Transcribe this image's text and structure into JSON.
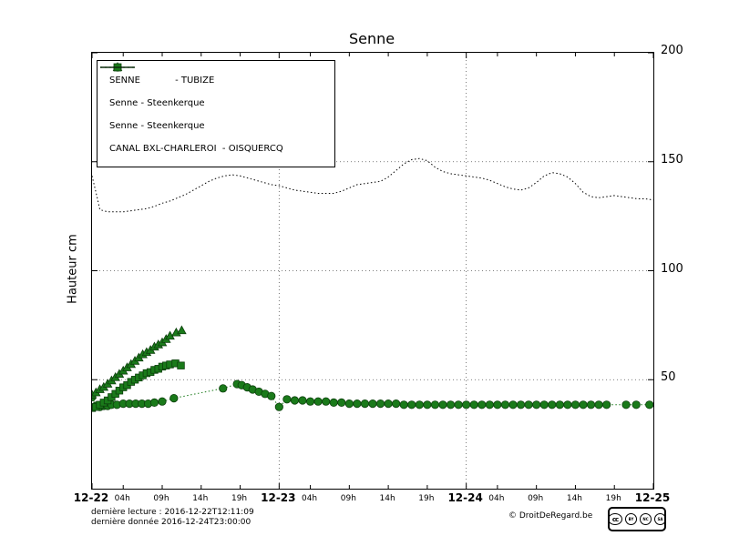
{
  "chart_data": {
    "type": "line",
    "title": "Senne",
    "ylabel": "Hauteur cm",
    "ylim": [
      0,
      200
    ],
    "xlim_hours": [
      0,
      72
    ],
    "y_ticks": [
      50,
      100,
      150,
      200
    ],
    "grid": true,
    "legend_position": "upper-left",
    "x_day_ticks": [
      {
        "hour": 0,
        "label": "12-22"
      },
      {
        "hour": 24,
        "label": "12-23"
      },
      {
        "hour": 48,
        "label": "12-24"
      },
      {
        "hour": 72,
        "label": "12-25"
      }
    ],
    "x_hour_ticks": [
      {
        "hour": 4,
        "label": "04h"
      },
      {
        "hour": 9,
        "label": "09h"
      },
      {
        "hour": 14,
        "label": "14h"
      },
      {
        "hour": 19,
        "label": "19h"
      },
      {
        "hour": 28,
        "label": "04h"
      },
      {
        "hour": 33,
        "label": "09h"
      },
      {
        "hour": 38,
        "label": "14h"
      },
      {
        "hour": 43,
        "label": "19h"
      },
      {
        "hour": 52,
        "label": "04h"
      },
      {
        "hour": 57,
        "label": "09h"
      },
      {
        "hour": 62,
        "label": "14h"
      },
      {
        "hour": 67,
        "label": "19h"
      }
    ],
    "series": [
      {
        "name": "SENNE - TUBIZE",
        "marker": "circle",
        "line": "dotted",
        "color": "#1a7a1a",
        "edge": "#0c3f0c",
        "points": [
          [
            0,
            42
          ],
          [
            0.5,
            38
          ],
          [
            1,
            37.5
          ],
          [
            1.5,
            38
          ],
          [
            2,
            38
          ],
          [
            2.5,
            38.5
          ],
          [
            3.2,
            38.5
          ],
          [
            4,
            39
          ],
          [
            4.8,
            39
          ],
          [
            5.6,
            39
          ],
          [
            6.4,
            39
          ],
          [
            7.2,
            39
          ],
          [
            8,
            39.5
          ],
          [
            9,
            40
          ],
          [
            10.5,
            41.5
          ],
          [
            16.8,
            46
          ],
          [
            18.6,
            48
          ],
          [
            19.2,
            47.5
          ],
          [
            19.9,
            46.5
          ],
          [
            20.6,
            45.5
          ],
          [
            21.4,
            44.5
          ],
          [
            22.2,
            43.5
          ],
          [
            23,
            42.5
          ],
          [
            24,
            37.5
          ],
          [
            25,
            41
          ],
          [
            26,
            40.5
          ],
          [
            27,
            40.5
          ],
          [
            28,
            40
          ],
          [
            29,
            40
          ],
          [
            30,
            40
          ],
          [
            31,
            39.5
          ],
          [
            32,
            39.5
          ],
          [
            33,
            39
          ],
          [
            34,
            39
          ],
          [
            35,
            39
          ],
          [
            36,
            39
          ],
          [
            37,
            39
          ],
          [
            38,
            39
          ],
          [
            39,
            39
          ],
          [
            40,
            38.5
          ],
          [
            41,
            38.5
          ],
          [
            42,
            38.5
          ],
          [
            43,
            38.5
          ],
          [
            44,
            38.5
          ],
          [
            45,
            38.5
          ],
          [
            46,
            38.5
          ],
          [
            47,
            38.5
          ],
          [
            48,
            38.5
          ],
          [
            49,
            38.5
          ],
          [
            50,
            38.5
          ],
          [
            51,
            38.5
          ],
          [
            52,
            38.5
          ],
          [
            53,
            38.5
          ],
          [
            54,
            38.5
          ],
          [
            55,
            38.5
          ],
          [
            56,
            38.5
          ],
          [
            57,
            38.5
          ],
          [
            58,
            38.5
          ],
          [
            59,
            38.5
          ],
          [
            60,
            38.5
          ],
          [
            61,
            38.5
          ],
          [
            62,
            38.5
          ],
          [
            63,
            38.5
          ],
          [
            64,
            38.5
          ],
          [
            65,
            38.5
          ],
          [
            66,
            38.5
          ],
          [
            68.5,
            38.5
          ],
          [
            69.8,
            38.5
          ],
          [
            71.5,
            38.5
          ]
        ]
      },
      {
        "name": "Senne - Steenkerque (triangles)",
        "marker": "triangle",
        "line": "solid",
        "color": "#1a7a1a",
        "edge": "#0c3f0c",
        "points": [
          [
            0,
            43
          ],
          [
            0.5,
            44
          ],
          [
            1,
            45.5
          ],
          [
            1.5,
            46.5
          ],
          [
            2,
            48
          ],
          [
            2.5,
            49.5
          ],
          [
            3,
            51
          ],
          [
            3.5,
            52.5
          ],
          [
            4,
            54
          ],
          [
            4.5,
            55.5
          ],
          [
            5,
            57
          ],
          [
            5.5,
            58.5
          ],
          [
            6,
            60
          ],
          [
            6.5,
            61.5
          ],
          [
            7,
            62.5
          ],
          [
            7.5,
            63.5
          ],
          [
            8,
            65
          ],
          [
            8.5,
            66
          ],
          [
            9,
            67
          ],
          [
            9.5,
            68.5
          ],
          [
            10,
            70
          ],
          [
            10.8,
            71.5
          ],
          [
            11.5,
            72.5
          ]
        ]
      },
      {
        "name": "Senne - Steenkerque (squares)",
        "marker": "square",
        "line": "solid",
        "color": "#1a7a1a",
        "edge": "#0c3f0c",
        "points": [
          [
            0,
            37
          ],
          [
            0.5,
            37.5
          ],
          [
            1,
            38.5
          ],
          [
            1.5,
            39.5
          ],
          [
            2,
            40.5
          ],
          [
            2.5,
            42
          ],
          [
            3,
            43.5
          ],
          [
            3.5,
            45
          ],
          [
            4,
            46.5
          ],
          [
            4.5,
            47.5
          ],
          [
            5,
            49
          ],
          [
            5.5,
            50
          ],
          [
            6,
            51
          ],
          [
            6.5,
            52
          ],
          [
            7,
            53
          ],
          [
            7.5,
            53.5
          ],
          [
            8,
            54.5
          ],
          [
            8.5,
            55
          ],
          [
            9,
            56
          ],
          [
            9.5,
            56.5
          ],
          [
            10,
            57
          ],
          [
            10.7,
            57.5
          ],
          [
            11.4,
            56.5
          ]
        ]
      },
      {
        "name": "CANAL BXL-CHARLEROI - OISQUERCQ",
        "marker": "none",
        "line": "dotted",
        "color": "#000000",
        "edge": "#000000",
        "points": [
          [
            0,
            143.5
          ],
          [
            0.5,
            136
          ],
          [
            1,
            128
          ],
          [
            2,
            127
          ],
          [
            3,
            127
          ],
          [
            4,
            127
          ],
          [
            5,
            127.5
          ],
          [
            6,
            128
          ],
          [
            7,
            128.5
          ],
          [
            8,
            129.5
          ],
          [
            9,
            131
          ],
          [
            10,
            132
          ],
          [
            11,
            133.5
          ],
          [
            12,
            135
          ],
          [
            13,
            137
          ],
          [
            14,
            139
          ],
          [
            15,
            141
          ],
          [
            16,
            142.5
          ],
          [
            17,
            143.5
          ],
          [
            18,
            144
          ],
          [
            19,
            143.5
          ],
          [
            20,
            142.5
          ],
          [
            21,
            141.5
          ],
          [
            22,
            140.5
          ],
          [
            23,
            139.5
          ],
          [
            24,
            139
          ],
          [
            25,
            138
          ],
          [
            26,
            137
          ],
          [
            27,
            136.5
          ],
          [
            28,
            136
          ],
          [
            29,
            135.5
          ],
          [
            30,
            135.5
          ],
          [
            31,
            135.5
          ],
          [
            32,
            136.5
          ],
          [
            33,
            138
          ],
          [
            34,
            139.5
          ],
          [
            35,
            140
          ],
          [
            36,
            140.5
          ],
          [
            37,
            141
          ],
          [
            38,
            143
          ],
          [
            39,
            146
          ],
          [
            40,
            149
          ],
          [
            41,
            151
          ],
          [
            42,
            151.5
          ],
          [
            43,
            150.5
          ],
          [
            44,
            147.5
          ],
          [
            45,
            145.5
          ],
          [
            46,
            144.5
          ],
          [
            47,
            144
          ],
          [
            48,
            143.5
          ],
          [
            49,
            143
          ],
          [
            50,
            142.5
          ],
          [
            51,
            141.5
          ],
          [
            52,
            140
          ],
          [
            53,
            138.5
          ],
          [
            54,
            137.5
          ],
          [
            55,
            137
          ],
          [
            56,
            138
          ],
          [
            57,
            140.5
          ],
          [
            58,
            143.5
          ],
          [
            59,
            145
          ],
          [
            60,
            144.5
          ],
          [
            61,
            143
          ],
          [
            62,
            140
          ],
          [
            63,
            136
          ],
          [
            64,
            134
          ],
          [
            65,
            133.5
          ],
          [
            66,
            134
          ],
          [
            67,
            134.5
          ],
          [
            68,
            134
          ],
          [
            69,
            133.5
          ],
          [
            70,
            133
          ],
          [
            71,
            133
          ],
          [
            72,
            132.5
          ]
        ]
      }
    ]
  },
  "legend": {
    "items": [
      "SENNE            - TUBIZE",
      "Senne - Steenkerque",
      "Senne - Steenkerque",
      "CANAL BXL-CHARLEROI  - OISQUERCQ"
    ]
  },
  "footer": {
    "line1": "dernière lecture : 2016-12-22T12:11:09",
    "line2": "dernière donnée  2016-12-24T23:00:00",
    "copyright": "© DroitDeRegard.be",
    "license": {
      "label": "cc",
      "terms": [
        "BY",
        "NC",
        "SA"
      ]
    }
  }
}
